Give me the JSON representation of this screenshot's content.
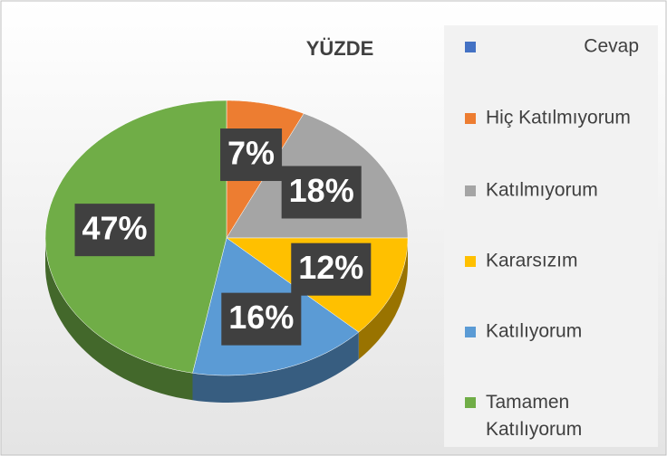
{
  "chart_data": {
    "type": "pie3d",
    "title": "YÜZDE",
    "categories": [
      "Cevap",
      "Hiç Katılmıyorum",
      "Katılmıyorum",
      "Kararsızım",
      "Katılıyorum",
      "Tamamen Katılıyorum"
    ],
    "values": [
      null,
      7,
      18,
      12,
      16,
      47
    ],
    "value_labels": [
      null,
      "7%",
      "18%",
      "12%",
      "16%",
      "47%"
    ],
    "colors": [
      "#4472c4",
      "#ed7d31",
      "#a5a5a5",
      "#ffc000",
      "#5b9bd5",
      "#70ad47"
    ]
  }
}
